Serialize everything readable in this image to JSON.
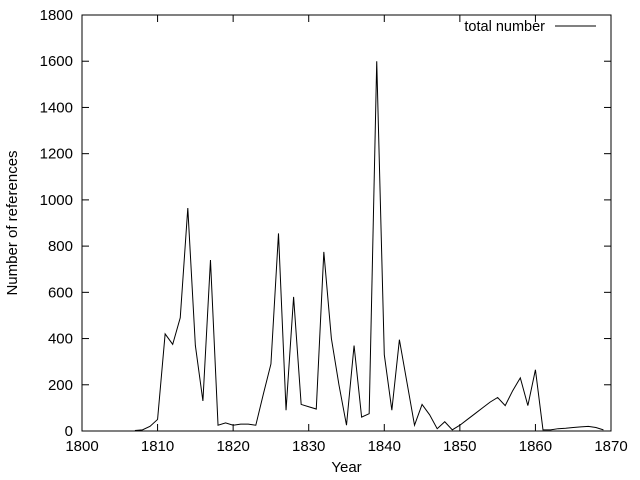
{
  "chart_data": {
    "type": "line",
    "xlabel": "Year",
    "ylabel": "Number of references",
    "xlim": [
      1800,
      1870
    ],
    "ylim": [
      0,
      1800
    ],
    "x_ticks": [
      1800,
      1810,
      1820,
      1830,
      1840,
      1850,
      1860,
      1870
    ],
    "y_ticks": [
      0,
      200,
      400,
      600,
      800,
      1000,
      1200,
      1400,
      1600,
      1800
    ],
    "grid": false,
    "legend_position": "top-right",
    "series": [
      {
        "name": "total number",
        "color": "#000000",
        "x": [
          1807,
          1808,
          1809,
          1810,
          1811,
          1812,
          1813,
          1814,
          1815,
          1816,
          1817,
          1818,
          1819,
          1820,
          1821,
          1822,
          1823,
          1824,
          1825,
          1826,
          1827,
          1828,
          1829,
          1830,
          1831,
          1832,
          1833,
          1834,
          1835,
          1836,
          1837,
          1838,
          1839,
          1840,
          1841,
          1842,
          1843,
          1844,
          1845,
          1846,
          1847,
          1848,
          1849,
          1850,
          1851,
          1852,
          1853,
          1854,
          1855,
          1856,
          1857,
          1858,
          1859,
          1860,
          1861,
          1862,
          1863,
          1864,
          1865,
          1866,
          1867,
          1868,
          1869
        ],
        "values": [
          2,
          5,
          20,
          50,
          420,
          375,
          490,
          965,
          370,
          130,
          740,
          25,
          35,
          25,
          30,
          30,
          25,
          160,
          290,
          855,
          90,
          580,
          115,
          105,
          95,
          775,
          400,
          200,
          25,
          370,
          60,
          75,
          1600,
          330,
          90,
          395,
          210,
          25,
          115,
          70,
          10,
          40,
          5,
          25,
          50,
          75,
          100,
          125,
          145,
          110,
          175,
          230,
          110,
          265,
          5,
          5,
          10,
          12,
          15,
          18,
          20,
          15,
          5
        ]
      }
    ]
  }
}
